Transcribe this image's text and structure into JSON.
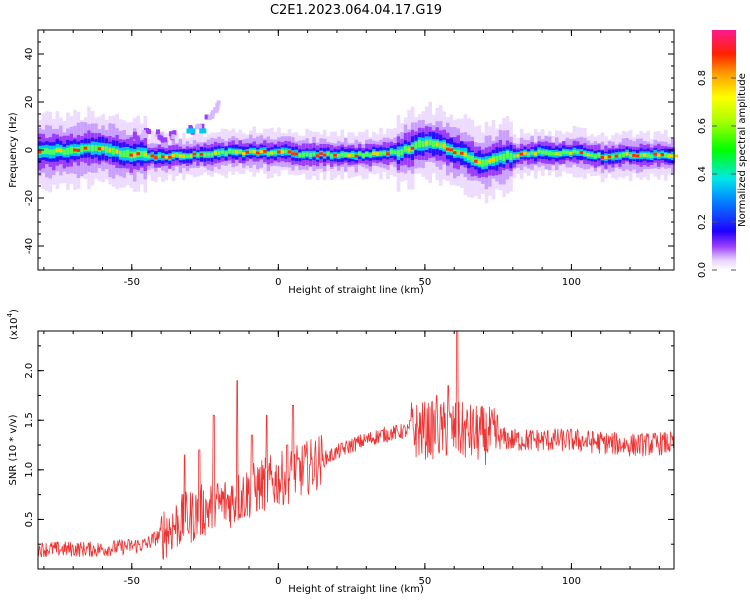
{
  "title": "C2E1.2023.064.04.17.G19",
  "chart_data": [
    {
      "type": "heatmap",
      "xlabel": "Height of straight line (km)",
      "ylabel": "Frequency (Hz)",
      "xlim": [
        -82,
        135
      ],
      "ylim": [
        -50,
        50
      ],
      "xticks": [
        -50,
        0,
        50,
        100
      ],
      "yticks": [
        -40,
        -20,
        0,
        20,
        40
      ],
      "colorbar": {
        "label": "Normalized spectral amplitude",
        "range": [
          0,
          1
        ],
        "ticks": [
          "0.0",
          "0.2",
          "0.4",
          "0.6",
          "0.8"
        ],
        "tick_values": [
          0,
          0.2,
          0.4,
          0.6,
          0.8
        ]
      },
      "ridge": {
        "x": [
          -82,
          -70,
          -60,
          -52,
          -48,
          -40,
          -30,
          -20,
          -10,
          0,
          10,
          20,
          30,
          40,
          45,
          50,
          55,
          60,
          65,
          70,
          75,
          80,
          90,
          100,
          110,
          120,
          135
        ],
        "y": [
          -1,
          0,
          1,
          -2,
          -2,
          -3,
          -2,
          -1,
          -1,
          -1,
          -2,
          -2,
          -2,
          -1,
          1,
          3,
          2,
          -1,
          -3,
          -6,
          -3,
          -2,
          -1,
          -1,
          -3,
          -2,
          -2
        ]
      },
      "side_branch": {
        "x": [
          -50,
          -45,
          -40,
          -35,
          -30,
          -25,
          -20
        ],
        "y": [
          5,
          7,
          5,
          6,
          8,
          12,
          20
        ]
      }
    },
    {
      "type": "line",
      "xlabel": "Height of straight line (km)",
      "ylabel": "SNR (10 * v/v)",
      "multiplier": "(x10",
      "multiplier_exp": "4",
      "multiplier_close": ")",
      "xlim": [
        -82,
        135
      ],
      "ylim": [
        0,
        2.4
      ],
      "xticks": [
        -50,
        0,
        50,
        100
      ],
      "yticks": [
        0.5,
        1.0,
        1.5,
        2.0
      ],
      "ytick_labels": [
        "0.5",
        "1.0",
        "1.5",
        "2.0"
      ],
      "color": "#ee3333",
      "trend": {
        "x": [
          -82,
          -60,
          -45,
          -35,
          -25,
          -15,
          -5,
          5,
          15,
          25,
          35,
          45,
          50,
          60,
          70,
          80,
          100,
          120,
          135
        ],
        "y": [
          0.2,
          0.2,
          0.25,
          0.45,
          0.6,
          0.7,
          0.85,
          0.95,
          1.1,
          1.25,
          1.35,
          1.4,
          1.4,
          1.4,
          1.35,
          1.3,
          1.3,
          1.25,
          1.27
        ]
      },
      "spikes": {
        "x": [
          -32,
          -27,
          -22,
          -14,
          -9,
          -4,
          3,
          5,
          9,
          45,
          54,
          58,
          61
        ],
        "y": [
          1.15,
          1.2,
          1.55,
          1.9,
          1.35,
          1.55,
          1.25,
          1.65,
          1.25,
          1.5,
          1.75,
          1.85,
          2.4
        ]
      }
    }
  ]
}
